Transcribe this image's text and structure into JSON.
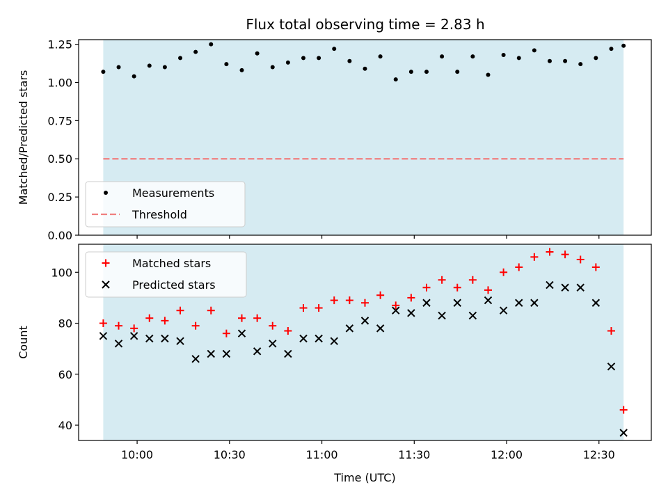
{
  "title": "Flux total observing time = 2.83 h",
  "colors": {
    "band": "#add8e6",
    "measurement": "#000000",
    "threshold": "#f08080",
    "matched": "#ff0000",
    "predicted": "#000000"
  },
  "chart_data": [
    {
      "type": "scatter",
      "ylabel": "Matched/Predicted stars",
      "ylim": [
        0,
        1.28
      ],
      "yticks": [
        0.0,
        0.25,
        0.5,
        0.75,
        1.0,
        1.25
      ],
      "ytick_labels": [
        "0.00",
        "0.25",
        "0.50",
        "0.75",
        "1.00",
        "1.25"
      ],
      "xlim": [
        "09:41",
        "12:47"
      ],
      "xticks": [
        "10:00",
        "10:30",
        "11:00",
        "11:30",
        "12:00",
        "12:30"
      ],
      "xtick_labels": [
        "",
        "",
        "",
        "",
        "",
        ""
      ],
      "shaded_span": [
        "09:49",
        "12:38"
      ],
      "legend": {
        "position": "lower-left",
        "entries": [
          "Measurements",
          "Threshold"
        ]
      },
      "threshold": {
        "name": "Threshold",
        "y": 0.5
      },
      "series": [
        {
          "name": "Measurements",
          "marker": "dot",
          "x": [
            "09:49",
            "09:54",
            "09:59",
            "10:04",
            "10:09",
            "10:14",
            "10:19",
            "10:24",
            "10:29",
            "10:34",
            "10:39",
            "10:44",
            "10:49",
            "10:54",
            "10:59",
            "11:04",
            "11:09",
            "11:14",
            "11:19",
            "11:24",
            "11:29",
            "11:34",
            "11:39",
            "11:44",
            "11:49",
            "11:54",
            "11:59",
            "12:04",
            "12:09",
            "12:14",
            "12:19",
            "12:24",
            "12:29",
            "12:34",
            "12:38"
          ],
          "y": [
            1.07,
            1.1,
            1.04,
            1.11,
            1.1,
            1.16,
            1.2,
            1.25,
            1.12,
            1.08,
            1.19,
            1.1,
            1.13,
            1.16,
            1.16,
            1.22,
            1.14,
            1.09,
            1.17,
            1.02,
            1.07,
            1.07,
            1.17,
            1.07,
            1.17,
            1.05,
            1.18,
            1.16,
            1.21,
            1.14,
            1.14,
            1.12,
            1.16,
            1.22,
            1.24
          ]
        }
      ]
    },
    {
      "type": "scatter",
      "ylabel": "Count",
      "xlabel": "Time (UTC)",
      "ylim": [
        34,
        111
      ],
      "yticks": [
        40,
        60,
        80,
        100
      ],
      "ytick_labels": [
        "40",
        "60",
        "80",
        "100"
      ],
      "xlim": [
        "09:41",
        "12:47"
      ],
      "xticks": [
        "10:00",
        "10:30",
        "11:00",
        "11:30",
        "12:00",
        "12:30"
      ],
      "xtick_labels": [
        "10:00",
        "10:30",
        "11:00",
        "11:30",
        "12:00",
        "12:30"
      ],
      "shaded_span": [
        "09:49",
        "12:38"
      ],
      "legend": {
        "position": "upper-left",
        "entries": [
          "Matched stars",
          "Predicted stars"
        ]
      },
      "series": [
        {
          "name": "Matched stars",
          "marker": "plus",
          "x": [
            "09:49",
            "09:54",
            "09:59",
            "10:04",
            "10:09",
            "10:14",
            "10:19",
            "10:24",
            "10:29",
            "10:34",
            "10:39",
            "10:44",
            "10:49",
            "10:54",
            "10:59",
            "11:04",
            "11:09",
            "11:14",
            "11:19",
            "11:24",
            "11:29",
            "11:34",
            "11:39",
            "11:44",
            "11:49",
            "11:54",
            "11:59",
            "12:04",
            "12:09",
            "12:14",
            "12:19",
            "12:24",
            "12:29",
            "12:34",
            "12:38"
          ],
          "y": [
            80,
            79,
            78,
            82,
            81,
            85,
            79,
            85,
            76,
            82,
            82,
            79,
            77,
            86,
            86,
            89,
            89,
            88,
            91,
            87,
            90,
            94,
            97,
            94,
            97,
            93,
            100,
            102,
            106,
            108,
            107,
            105,
            102,
            77,
            46
          ]
        },
        {
          "name": "Predicted stars",
          "marker": "x",
          "x": [
            "09:49",
            "09:54",
            "09:59",
            "10:04",
            "10:09",
            "10:14",
            "10:19",
            "10:24",
            "10:29",
            "10:34",
            "10:39",
            "10:44",
            "10:49",
            "10:54",
            "10:59",
            "11:04",
            "11:09",
            "11:14",
            "11:19",
            "11:24",
            "11:29",
            "11:34",
            "11:39",
            "11:44",
            "11:49",
            "11:54",
            "11:59",
            "12:04",
            "12:09",
            "12:14",
            "12:19",
            "12:24",
            "12:29",
            "12:34",
            "12:38"
          ],
          "y": [
            75,
            72,
            75,
            74,
            74,
            73,
            66,
            68,
            68,
            76,
            69,
            72,
            68,
            74,
            74,
            73,
            78,
            81,
            78,
            85,
            84,
            88,
            83,
            88,
            83,
            89,
            85,
            88,
            88,
            95,
            94,
            94,
            88,
            63,
            37
          ]
        }
      ]
    }
  ]
}
